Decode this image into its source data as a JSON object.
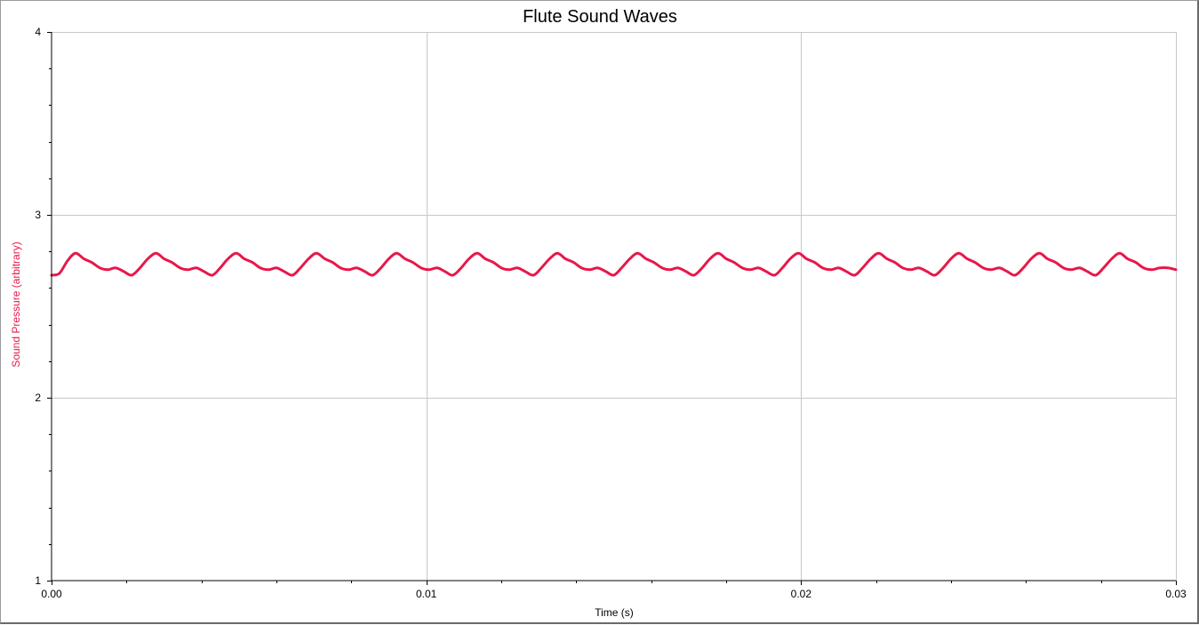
{
  "chart_data": {
    "type": "line",
    "title": "Flute Sound Waves",
    "xlabel": "Time (s)",
    "ylabel": "Sound Pressure (arbitrary)",
    "xlim": [
      0,
      0.03
    ],
    "ylim": [
      1,
      4
    ],
    "x_ticks": [
      0,
      0.01,
      0.02,
      0.03
    ],
    "x_tick_labels": [
      "0.00",
      "0.01",
      "0.02",
      "0.03"
    ],
    "y_ticks": [
      1,
      2,
      3,
      4
    ],
    "y_tick_labels": [
      "1",
      "2",
      "3",
      "4"
    ],
    "grid": true,
    "legend": "none",
    "series": [
      {
        "color": "#e8174a",
        "x": [
          0,
          0.00021,
          0.00043,
          0.00064,
          0.00086,
          0.00107,
          0.00129,
          0.0015,
          0.00171,
          0.00193,
          0.00214,
          0.00236,
          0.00257,
          0.00279,
          0.003,
          0.00321,
          0.00343,
          0.00364,
          0.00386,
          0.00407,
          0.00429,
          0.0045,
          0.00471,
          0.00493,
          0.00514,
          0.00536,
          0.00557,
          0.00579,
          0.006,
          0.00621,
          0.00643,
          0.00664,
          0.00686,
          0.00707,
          0.00729,
          0.0075,
          0.00771,
          0.00793,
          0.00814,
          0.00836,
          0.00857,
          0.00879,
          0.009,
          0.00921,
          0.00943,
          0.00964,
          0.00986,
          0.01007,
          0.01029,
          0.0105,
          0.01071,
          0.01093,
          0.01114,
          0.01136,
          0.01157,
          0.01179,
          0.012,
          0.01221,
          0.01243,
          0.01264,
          0.01286,
          0.01307,
          0.01329,
          0.0135,
          0.01371,
          0.01393,
          0.01414,
          0.01436,
          0.01457,
          0.01479,
          0.015,
          0.01521,
          0.01543,
          0.01564,
          0.01586,
          0.01607,
          0.01629,
          0.0165,
          0.01671,
          0.01693,
          0.01714,
          0.01736,
          0.01757,
          0.01779,
          0.018,
          0.01821,
          0.01843,
          0.01864,
          0.01886,
          0.01907,
          0.01929,
          0.0195,
          0.01971,
          0.01993,
          0.02014,
          0.02036,
          0.02057,
          0.02079,
          0.021,
          0.02121,
          0.02143,
          0.02164,
          0.02186,
          0.02207,
          0.02229,
          0.0225,
          0.02271,
          0.02293,
          0.02314,
          0.02336,
          0.02357,
          0.02379,
          0.024,
          0.02421,
          0.02443,
          0.02464,
          0.02486,
          0.02507,
          0.02529,
          0.0255,
          0.02571,
          0.02593,
          0.02614,
          0.02636,
          0.02657,
          0.02679,
          0.027,
          0.02721,
          0.02743,
          0.02764,
          0.02786,
          0.02807,
          0.02829,
          0.0285,
          0.02871,
          0.02893,
          0.02914,
          0.02936,
          0.02957,
          0.02979,
          0.03
        ],
        "y": [
          2.67,
          2.68,
          2.75,
          2.79,
          2.76,
          2.74,
          2.71,
          2.7,
          2.71,
          2.69,
          2.67,
          2.71,
          2.76,
          2.79,
          2.76,
          2.74,
          2.71,
          2.7,
          2.71,
          2.69,
          2.67,
          2.71,
          2.76,
          2.79,
          2.76,
          2.74,
          2.71,
          2.7,
          2.71,
          2.69,
          2.67,
          2.71,
          2.76,
          2.79,
          2.76,
          2.74,
          2.71,
          2.7,
          2.71,
          2.69,
          2.67,
          2.71,
          2.76,
          2.79,
          2.76,
          2.74,
          2.71,
          2.7,
          2.71,
          2.69,
          2.67,
          2.71,
          2.76,
          2.79,
          2.76,
          2.74,
          2.71,
          2.7,
          2.71,
          2.69,
          2.67,
          2.71,
          2.76,
          2.79,
          2.76,
          2.74,
          2.71,
          2.7,
          2.71,
          2.69,
          2.67,
          2.71,
          2.76,
          2.79,
          2.76,
          2.74,
          2.71,
          2.7,
          2.71,
          2.69,
          2.67,
          2.71,
          2.76,
          2.79,
          2.76,
          2.74,
          2.71,
          2.7,
          2.71,
          2.69,
          2.67,
          2.71,
          2.76,
          2.79,
          2.76,
          2.74,
          2.71,
          2.7,
          2.71,
          2.69,
          2.67,
          2.71,
          2.76,
          2.79,
          2.76,
          2.74,
          2.71,
          2.7,
          2.71,
          2.69,
          2.67,
          2.71,
          2.76,
          2.79,
          2.76,
          2.74,
          2.71,
          2.7,
          2.71,
          2.69,
          2.67,
          2.71,
          2.76,
          2.79,
          2.76,
          2.74,
          2.71,
          2.7,
          2.71,
          2.69,
          2.67,
          2.71,
          2.76,
          2.79,
          2.76,
          2.74,
          2.71,
          2.7,
          2.71,
          2.71,
          2.7
        ]
      }
    ],
    "colors": {
      "grid": "#c8c8c8",
      "axis": "#000000",
      "frame": "#9a9a9a",
      "ylabel": "#e8174a"
    }
  }
}
